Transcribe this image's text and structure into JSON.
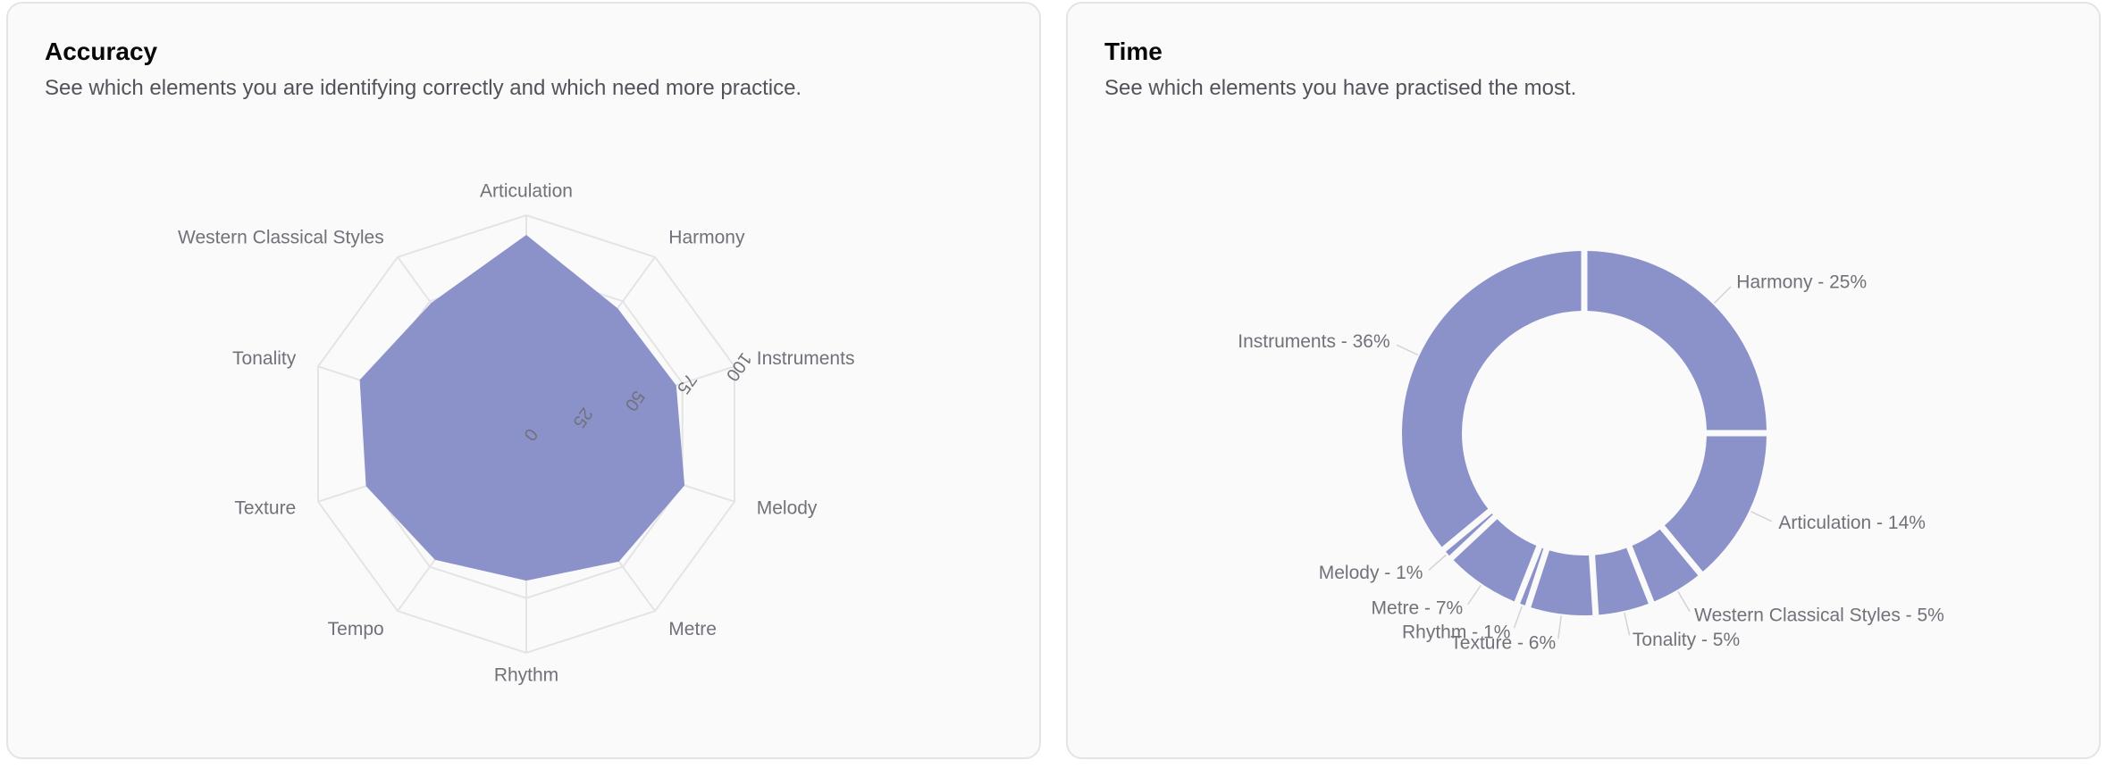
{
  "cards": [
    {
      "title": "Accuracy",
      "description": "See which elements you are identifying correctly and which need more practice."
    },
    {
      "title": "Time",
      "description": "See which elements you have practised the most."
    }
  ],
  "colors": {
    "fill": "#8b92c9",
    "grid": "#e4e4e7",
    "label": "#71717a"
  },
  "chart_data": [
    {
      "type": "radar",
      "categories": [
        "Articulation",
        "Harmony",
        "Instruments",
        "Melody",
        "Metre",
        "Rhythm",
        "Tempo",
        "Texture",
        "Tonality",
        "Western Classical Styles"
      ],
      "values": [
        91,
        71,
        72,
        76,
        72,
        67,
        71,
        77,
        80,
        74
      ],
      "radial_ticks": [
        "0",
        "25",
        "50",
        "75",
        "100"
      ],
      "range": [
        0,
        100
      ],
      "grid": true
    },
    {
      "type": "pie",
      "variant": "donut",
      "labels": [
        "Harmony - 25%",
        "Articulation - 14%",
        "Western Classical Styles - 5%",
        "Tonality - 5%",
        "Texture - 6%",
        "Rhythm - 1%",
        "Metre - 7%",
        "Melody - 1%",
        "Instruments - 36%"
      ],
      "categories": [
        "Harmony",
        "Articulation",
        "Western Classical Styles",
        "Tonality",
        "Texture",
        "Rhythm",
        "Metre",
        "Melody",
        "Instruments"
      ],
      "values": [
        25,
        14,
        5,
        5,
        6,
        1,
        7,
        1,
        36
      ]
    }
  ]
}
